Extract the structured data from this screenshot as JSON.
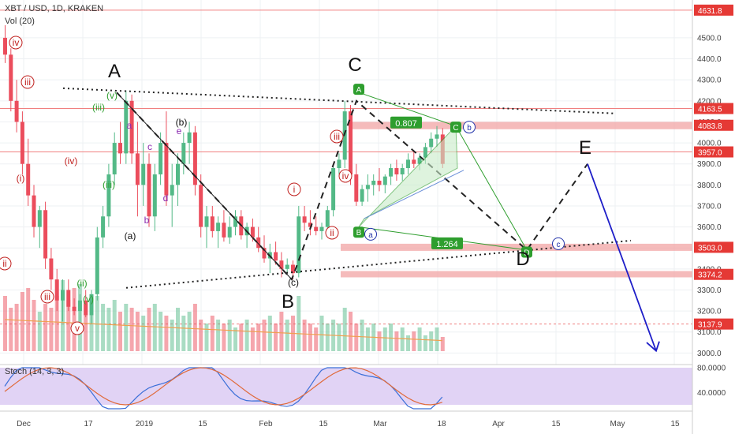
{
  "header": {
    "symbol": "XBT / USD, 1D, KRAKEN",
    "volume": "Vol (20)",
    "stoch": "Stoch (14, 3, 3)"
  },
  "colors": {
    "up": "#53b987",
    "down": "#eb4d5c",
    "grid": "#eef0f3",
    "arrow": "#1e1ec8",
    "green": "#2e9e2e",
    "pink": "#f2a4a4",
    "purple_bg": "#d9c8f2"
  },
  "price_axis": {
    "ticks": [
      "4500.0",
      "4400.0",
      "4300.0",
      "4200.0",
      "4100.0",
      "4000.0",
      "3900.0",
      "3800.0",
      "3700.0",
      "3600.0",
      "3500.0",
      "3400.0",
      "3300.0",
      "3200.0",
      "3100.0",
      "3000.0"
    ],
    "tick_values": [
      4500,
      4400,
      4300,
      4200,
      4100,
      4000,
      3900,
      3800,
      3700,
      3600,
      3500,
      3400,
      3300,
      3200,
      3100,
      3000
    ]
  },
  "stoch_axis": {
    "ticks": [
      "80.0000",
      "40.0000"
    ],
    "tick_values": [
      80,
      40
    ]
  },
  "x_axis": {
    "labels": [
      "Dec",
      "17",
      "2019",
      "15",
      "Feb",
      "15",
      "Mar",
      "18",
      "Apr",
      "15",
      "May",
      "15"
    ]
  },
  "level_tags": [
    {
      "label": "4631.8",
      "value": 4631.8
    },
    {
      "label": "4163.5",
      "value": 4163.5
    },
    {
      "label": "4083.8",
      "value": 4083.8
    },
    {
      "label": "3957.0",
      "value": 3957.0
    },
    {
      "label": "3503.0",
      "value": 3503.0
    },
    {
      "label": "3374.2",
      "value": 3374.2
    },
    {
      "label": "3137.9",
      "value": 3137.9
    }
  ],
  "pattern_labels": [
    "A",
    "B",
    "C",
    "D",
    "E"
  ],
  "wave_labels": [
    "iv",
    "iii",
    "(i)",
    "(iii)",
    "(iv)",
    "(v)",
    "ii",
    "iii",
    "v",
    "(ii)",
    "(v)",
    "(iii)",
    "a",
    "b",
    "c",
    "d",
    "e",
    "(a)",
    "(b)",
    "(c)",
    "i",
    "ii",
    "iii",
    "iv"
  ],
  "ratios": [
    "0.807",
    "1.264"
  ],
  "harmonic_points": [
    "A",
    "B",
    "C",
    "D",
    "a",
    "b",
    "c"
  ],
  "chart_data": {
    "type": "candlestick",
    "title": "XBT / USD, 1D, KRAKEN",
    "ylim": [
      2960,
      4680
    ],
    "levels": [
      4631.8,
      4163.5,
      4083.8,
      3957.0,
      3503.0,
      3374.2,
      3137.9
    ],
    "series": [
      {
        "name": "XBT/USD",
        "ohlc": [
          [
            4500,
            4560,
            4380,
            4420
          ],
          [
            4420,
            4450,
            4150,
            4200
          ],
          [
            4200,
            4300,
            4050,
            4100
          ],
          [
            4100,
            4150,
            3850,
            3900
          ],
          [
            3900,
            4020,
            3700,
            3750
          ],
          [
            3750,
            3800,
            3550,
            3600
          ],
          [
            3600,
            3700,
            3500,
            3680
          ],
          [
            3680,
            3720,
            3400,
            3450
          ],
          [
            3450,
            3500,
            3300,
            3350
          ],
          [
            3350,
            3400,
            3200,
            3250
          ],
          [
            3250,
            3350,
            3150,
            3300
          ],
          [
            3300,
            3350,
            3200,
            3220
          ],
          [
            3220,
            3260,
            3180,
            3200
          ],
          [
            3200,
            3280,
            3130,
            3250
          ],
          [
            3250,
            3300,
            3170,
            3180
          ],
          [
            3180,
            3300,
            3140,
            3280
          ],
          [
            3280,
            3600,
            3250,
            3550
          ],
          [
            3550,
            3700,
            3500,
            3650
          ],
          [
            3650,
            3900,
            3600,
            3850
          ],
          [
            3850,
            4050,
            3800,
            4000
          ],
          [
            4000,
            4100,
            3900,
            3950
          ],
          [
            3950,
            4250,
            3900,
            4200
          ],
          [
            4200,
            4230,
            3900,
            3950
          ],
          [
            3950,
            4100,
            3650,
            3800
          ],
          [
            3800,
            4000,
            3700,
            3900
          ],
          [
            3900,
            3950,
            3600,
            3650
          ],
          [
            3650,
            3900,
            3580,
            3850
          ],
          [
            3850,
            4050,
            3800,
            4000
          ],
          [
            4000,
            4150,
            3700,
            3750
          ],
          [
            3750,
            3900,
            3600,
            3800
          ],
          [
            3800,
            3950,
            3700,
            3900
          ],
          [
            3900,
            4050,
            3850,
            4000
          ],
          [
            4000,
            4100,
            3900,
            4050
          ],
          [
            4050,
            4080,
            3750,
            3800
          ],
          [
            3800,
            3850,
            3550,
            3600
          ],
          [
            3600,
            3700,
            3500,
            3650
          ],
          [
            3650,
            3700,
            3550,
            3580
          ],
          [
            3580,
            3650,
            3500,
            3620
          ],
          [
            3620,
            3680,
            3530,
            3550
          ],
          [
            3550,
            3650,
            3520,
            3600
          ],
          [
            3600,
            3680,
            3560,
            3650
          ],
          [
            3650,
            3680,
            3540,
            3560
          ],
          [
            3560,
            3620,
            3500,
            3600
          ],
          [
            3600,
            3640,
            3530,
            3550
          ],
          [
            3550,
            3600,
            3480,
            3500
          ],
          [
            3500,
            3560,
            3430,
            3450
          ],
          [
            3450,
            3520,
            3380,
            3480
          ],
          [
            3480,
            3530,
            3420,
            3440
          ],
          [
            3440,
            3480,
            3360,
            3400
          ],
          [
            3400,
            3450,
            3380,
            3420
          ],
          [
            3420,
            3440,
            3350,
            3380
          ],
          [
            3380,
            3700,
            3360,
            3650
          ],
          [
            3650,
            3700,
            3580,
            3620
          ],
          [
            3620,
            3680,
            3560,
            3600
          ],
          [
            3600,
            3650,
            3560,
            3580
          ],
          [
            3580,
            3620,
            3540,
            3600
          ],
          [
            3600,
            3700,
            3580,
            3680
          ],
          [
            3680,
            3900,
            3650,
            3880
          ],
          [
            3880,
            3950,
            3850,
            3920
          ],
          [
            3920,
            4200,
            3880,
            4150
          ],
          [
            4150,
            4180,
            3800,
            3850
          ],
          [
            3850,
            3900,
            3700,
            3720
          ],
          [
            3720,
            3800,
            3700,
            3780
          ],
          [
            3780,
            3850,
            3720,
            3800
          ],
          [
            3800,
            3850,
            3750,
            3820
          ],
          [
            3820,
            3880,
            3770,
            3800
          ],
          [
            3800,
            3850,
            3760,
            3840
          ],
          [
            3840,
            3900,
            3800,
            3880
          ],
          [
            3880,
            3920,
            3820,
            3850
          ],
          [
            3850,
            3900,
            3820,
            3880
          ],
          [
            3880,
            3950,
            3850,
            3920
          ],
          [
            3920,
            3960,
            3880,
            3900
          ],
          [
            3900,
            3950,
            3870,
            3930
          ],
          [
            3930,
            4000,
            3900,
            3980
          ],
          [
            3980,
            4050,
            3950,
            4020
          ],
          [
            4020,
            4080,
            3980,
            4040
          ],
          [
            4040,
            4070,
            3880,
            3900
          ]
        ],
        "volume": [
          70,
          55,
          60,
          75,
          80,
          65,
          50,
          60,
          55,
          70,
          90,
          65,
          80,
          85,
          60,
          50,
          70,
          60,
          55,
          65,
          50,
          60,
          55,
          50,
          45,
          55,
          60,
          50,
          45,
          40,
          55,
          45,
          50,
          60,
          40,
          35,
          45,
          40,
          35,
          40,
          30,
          35,
          40,
          30,
          35,
          40,
          45,
          35,
          50,
          40,
          45,
          70,
          40,
          35,
          30,
          45,
          35,
          40,
          35,
          55,
          50,
          35,
          40,
          30,
          35,
          25,
          30,
          35,
          25,
          30,
          20,
          25,
          30,
          20,
          25,
          30,
          18
        ]
      }
    ]
  }
}
